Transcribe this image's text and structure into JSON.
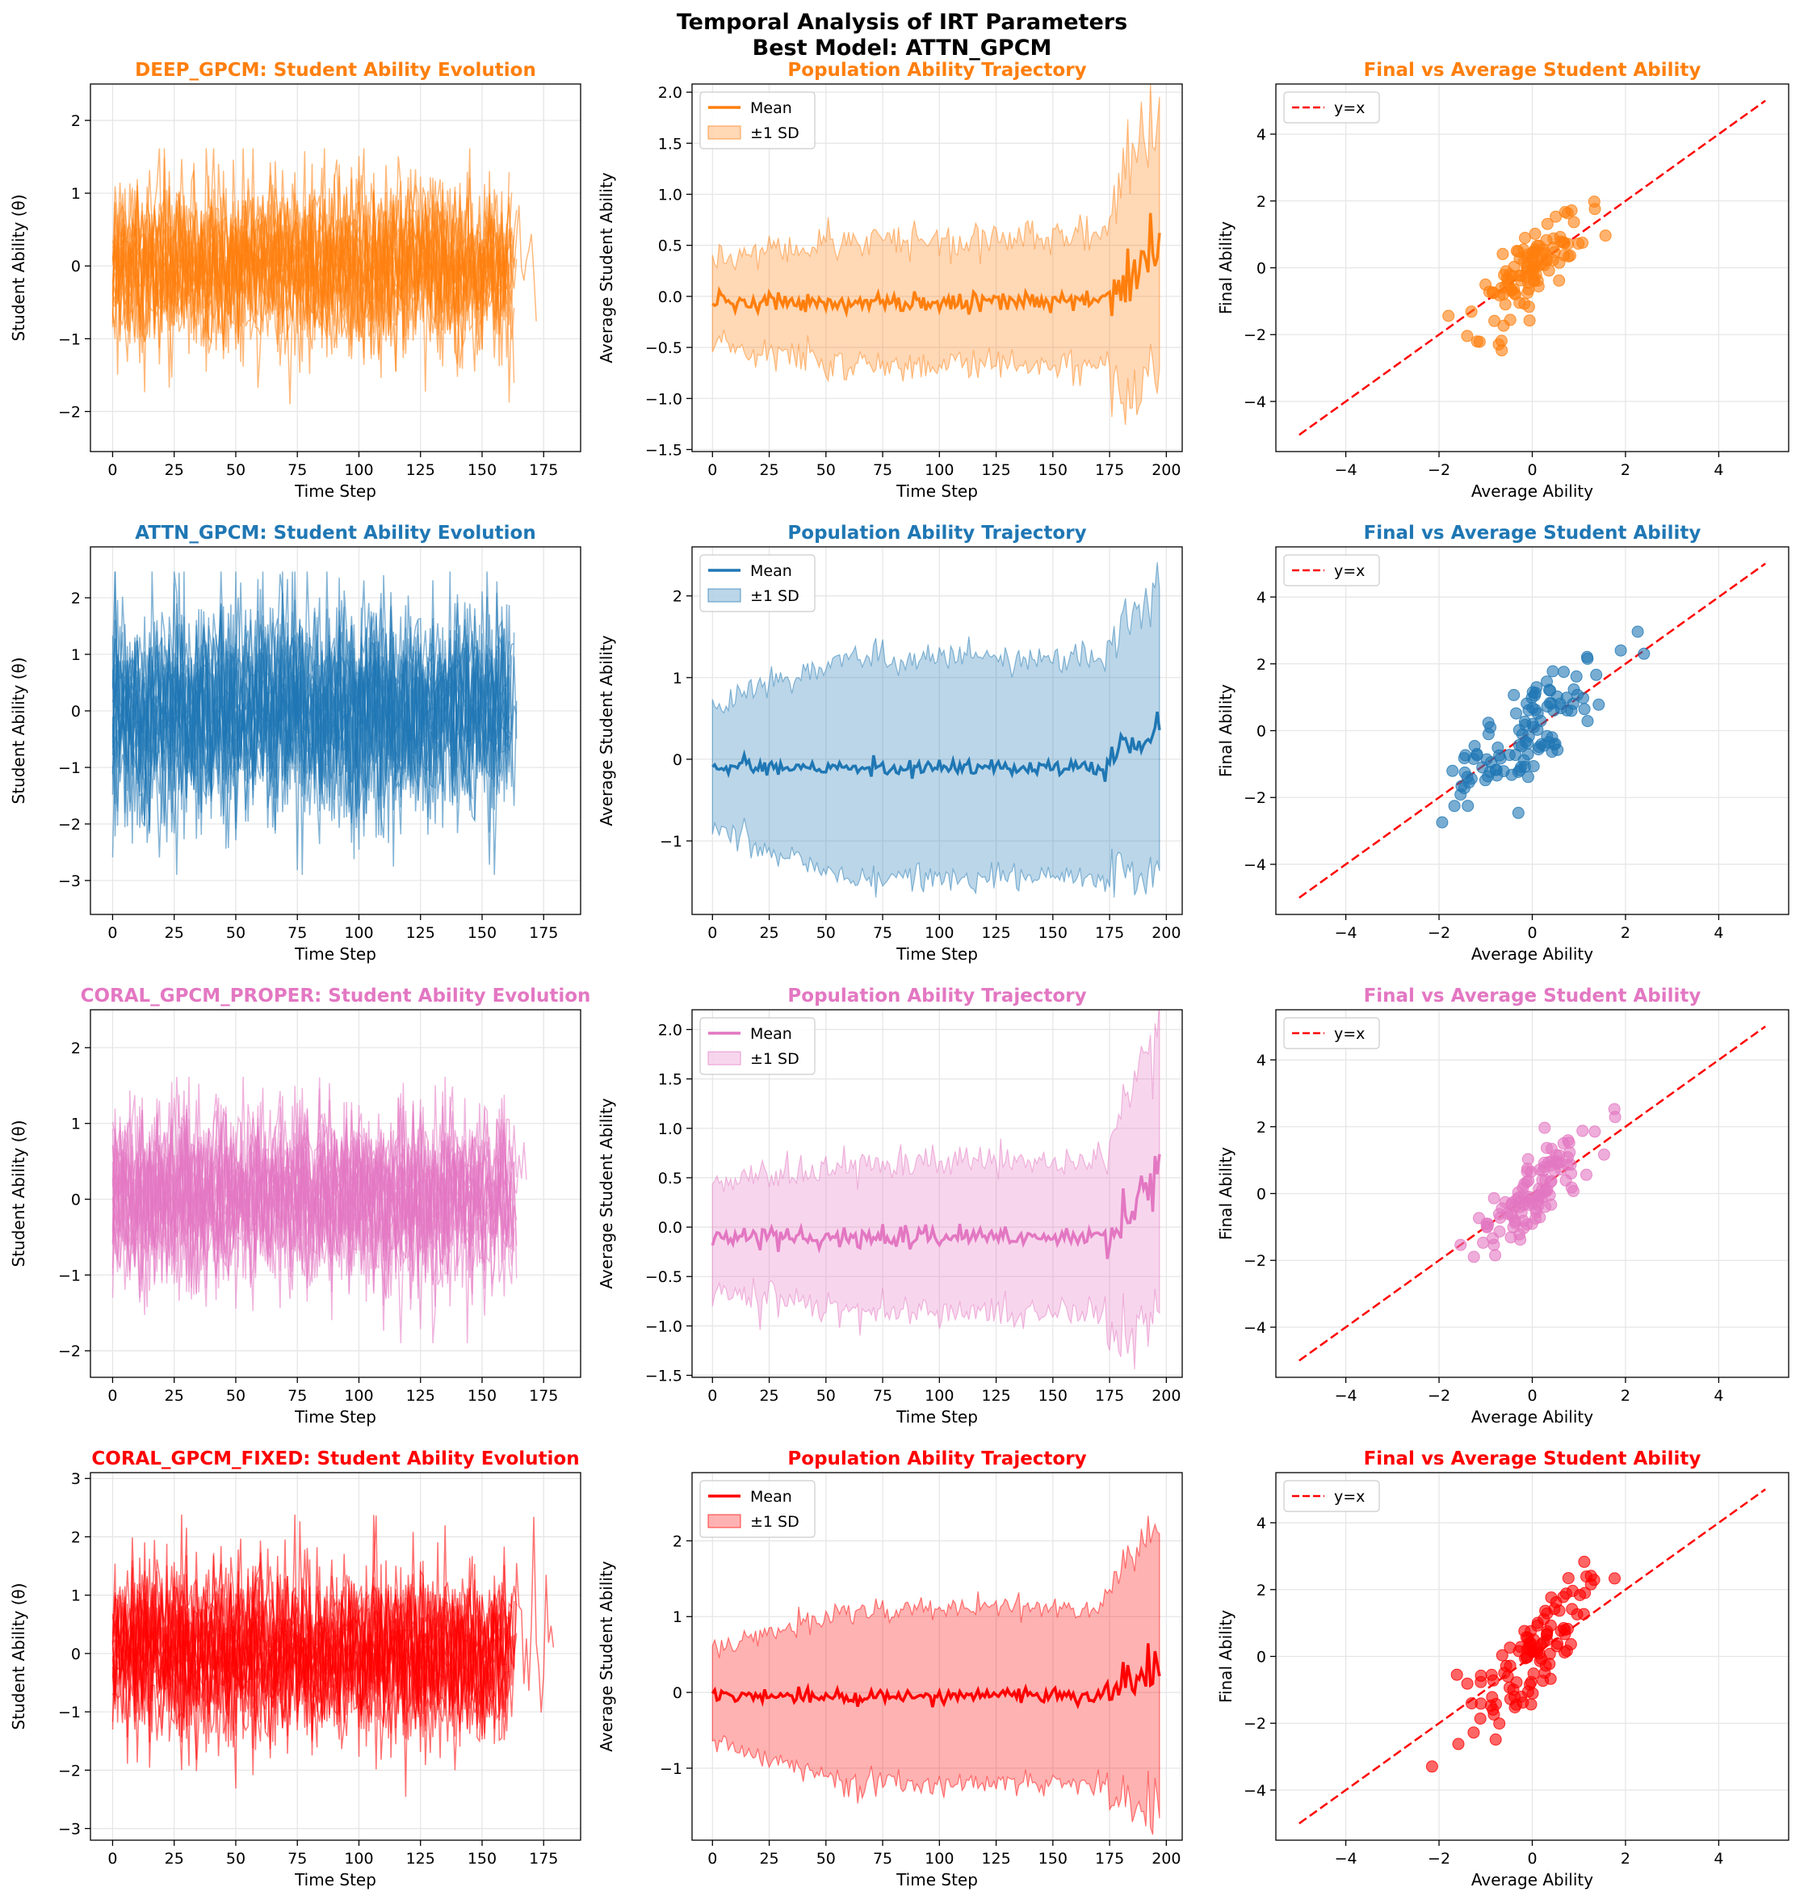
{
  "figure": {
    "title_line1": "Temporal Analysis of IRT Parameters",
    "title_line2": "Best Model: ATTN_GPCM"
  },
  "models": [
    {
      "name": "DEEP_GPCM",
      "color": "#ff7f0e"
    },
    {
      "name": "ATTN_GPCM",
      "color": "#1f77b4"
    },
    {
      "name": "CORAL_GPCM_PROPER",
      "color": "#e377c2"
    },
    {
      "name": "CORAL_GPCM_FIXED",
      "color": "#ff0000"
    }
  ],
  "chart_data": [
    {
      "type": "line",
      "panel": "evolution",
      "model": "DEEP_GPCM",
      "title": "DEEP_GPCM: Student Ability Evolution",
      "xlabel": "Time Step",
      "ylabel": "Student Ability (θ)",
      "xlim": [
        -9,
        190
      ],
      "ylim": [
        -2.55,
        2.5
      ],
      "xticks": [
        0,
        25,
        50,
        75,
        100,
        125,
        150,
        175
      ],
      "yticks": [
        -2,
        -1,
        0,
        1,
        2
      ],
      "grid": true,
      "series_count": 20,
      "series_max_len": 180,
      "seed": 11,
      "spread": 0.55,
      "extreme": 1.9
    },
    {
      "type": "area",
      "panel": "trajectory",
      "model": "DEEP_GPCM",
      "title": "Population Ability Trajectory",
      "xlabel": "Time Step",
      "ylabel": "Average Student Ability",
      "xlim": [
        -9,
        207
      ],
      "ylim": [
        -1.52,
        2.08
      ],
      "xticks": [
        0,
        25,
        50,
        75,
        100,
        125,
        150,
        175,
        200
      ],
      "yticks": [
        -1.5,
        -1.0,
        -0.5,
        0.0,
        0.5,
        1.0,
        1.5,
        2.0
      ],
      "legend": [
        "Mean",
        "±1 SD"
      ],
      "legend_position": "top-left",
      "grid": true,
      "x_end": 197,
      "base_mean": -0.05,
      "sd_start": 0.42,
      "sd_mid": 0.62,
      "sd_peak": 1.25,
      "seed": 21
    },
    {
      "type": "scatter",
      "panel": "final_vs_average",
      "model": "DEEP_GPCM",
      "title": "Final vs Average Student Ability",
      "xlabel": "Average Ability",
      "ylabel": "Final Ability",
      "xlim": [
        -5.5,
        5.5
      ],
      "ylim": [
        -5.5,
        5.5
      ],
      "xticks": [
        -4,
        -2,
        0,
        2,
        4
      ],
      "yticks": [
        -4,
        -2,
        0,
        2,
        4
      ],
      "legend": [
        "y=x"
      ],
      "legend_position": "top-left",
      "reference_line": [
        [
          -5,
          -5
        ],
        [
          5,
          5
        ]
      ],
      "grid": true,
      "n_points": 110,
      "x_spread": 0.6,
      "slope": 1.25,
      "noise": 0.55,
      "seed": 31
    },
    {
      "type": "line",
      "panel": "evolution",
      "model": "ATTN_GPCM",
      "title": "ATTN_GPCM: Student Ability Evolution",
      "xlabel": "Time Step",
      "ylabel": "Student Ability (θ)",
      "xlim": [
        -9,
        190
      ],
      "ylim": [
        -3.6,
        2.9
      ],
      "xticks": [
        0,
        25,
        50,
        75,
        100,
        125,
        150,
        175
      ],
      "yticks": [
        -3,
        -2,
        -1,
        0,
        1,
        2
      ],
      "grid": true,
      "series_count": 20,
      "series_max_len": 180,
      "seed": 12,
      "spread": 0.9,
      "extreme": 2.9
    },
    {
      "type": "area",
      "panel": "trajectory",
      "model": "ATTN_GPCM",
      "title": "Population Ability Trajectory",
      "xlabel": "Time Step",
      "ylabel": "Average Student Ability",
      "xlim": [
        -9,
        207
      ],
      "ylim": [
        -1.9,
        2.6
      ],
      "xticks": [
        0,
        25,
        50,
        75,
        100,
        125,
        150,
        175,
        200
      ],
      "yticks": [
        -1,
        0,
        1,
        2
      ],
      "legend": [
        "Mean",
        "±1 SD"
      ],
      "legend_position": "top-left",
      "grid": true,
      "x_end": 197,
      "base_mean": -0.1,
      "sd_start": 0.75,
      "sd_mid": 1.35,
      "sd_peak": 1.65,
      "seed": 22
    },
    {
      "type": "scatter",
      "panel": "final_vs_average",
      "model": "ATTN_GPCM",
      "title": "Final vs Average Student Ability",
      "xlabel": "Average Ability",
      "ylabel": "Final Ability",
      "xlim": [
        -5.5,
        5.5
      ],
      "ylim": [
        -5.5,
        5.5
      ],
      "xticks": [
        -4,
        -2,
        0,
        2,
        4
      ],
      "yticks": [
        -4,
        -2,
        0,
        2,
        4
      ],
      "legend": [
        "y=x"
      ],
      "legend_position": "top-left",
      "reference_line": [
        [
          -5,
          -5
        ],
        [
          5,
          5
        ]
      ],
      "grid": true,
      "n_points": 110,
      "x_spread": 1.0,
      "slope": 1.0,
      "noise": 0.7,
      "seed": 32
    },
    {
      "type": "line",
      "panel": "evolution",
      "model": "CORAL_GPCM_PROPER",
      "title": "CORAL_GPCM_PROPER: Student Ability Evolution",
      "xlabel": "Time Step",
      "ylabel": "Student Ability (θ)",
      "xlim": [
        -9,
        190
      ],
      "ylim": [
        -2.35,
        2.5
      ],
      "xticks": [
        0,
        25,
        50,
        75,
        100,
        125,
        150,
        175
      ],
      "yticks": [
        -2,
        -1,
        0,
        1,
        2
      ],
      "grid": true,
      "series_count": 20,
      "series_max_len": 180,
      "seed": 13,
      "spread": 0.55,
      "extreme": 1.9
    },
    {
      "type": "area",
      "panel": "trajectory",
      "model": "CORAL_GPCM_PROPER",
      "title": "Population Ability Trajectory",
      "xlabel": "Time Step",
      "ylabel": "Average Student Ability",
      "xlim": [
        -9,
        207
      ],
      "ylim": [
        -1.52,
        2.2
      ],
      "xticks": [
        0,
        25,
        50,
        75,
        100,
        125,
        150,
        175,
        200
      ],
      "yticks": [
        -1.5,
        -1.0,
        -0.5,
        0.0,
        0.5,
        1.0,
        1.5,
        2.0
      ],
      "legend": [
        "Mean",
        "±1 SD"
      ],
      "legend_position": "top-left",
      "grid": true,
      "x_end": 197,
      "base_mean": -0.1,
      "sd_start": 0.55,
      "sd_mid": 0.75,
      "sd_peak": 1.35,
      "seed": 23
    },
    {
      "type": "scatter",
      "panel": "final_vs_average",
      "model": "CORAL_GPCM_PROPER",
      "title": "Final vs Average Student Ability",
      "xlabel": "Average Ability",
      "ylabel": "Final Ability",
      "xlim": [
        -5.5,
        5.5
      ],
      "ylim": [
        -5.5,
        5.5
      ],
      "xticks": [
        -4,
        -2,
        0,
        2,
        4
      ],
      "yticks": [
        -4,
        -2,
        0,
        2,
        4
      ],
      "legend": [
        "y=x"
      ],
      "legend_position": "top-left",
      "reference_line": [
        [
          -5,
          -5
        ],
        [
          5,
          5
        ]
      ],
      "grid": true,
      "n_points": 110,
      "x_spread": 0.6,
      "slope": 1.3,
      "noise": 0.55,
      "seed": 33
    },
    {
      "type": "line",
      "panel": "evolution",
      "model": "CORAL_GPCM_FIXED",
      "title": "CORAL_GPCM_FIXED: Student Ability Evolution",
      "xlabel": "Time Step",
      "ylabel": "Student Ability (θ)",
      "xlim": [
        -9,
        190
      ],
      "ylim": [
        -3.2,
        3.1
      ],
      "xticks": [
        0,
        25,
        50,
        75,
        100,
        125,
        150,
        175
      ],
      "yticks": [
        -3,
        -2,
        -1,
        0,
        1,
        2,
        3
      ],
      "grid": true,
      "series_count": 20,
      "series_max_len": 180,
      "seed": 14,
      "spread": 0.7,
      "extreme": 2.8
    },
    {
      "type": "area",
      "panel": "trajectory",
      "model": "CORAL_GPCM_FIXED",
      "title": "Population Ability Trajectory",
      "xlabel": "Time Step",
      "ylabel": "Average Student Ability",
      "xlim": [
        -9,
        207
      ],
      "ylim": [
        -1.95,
        2.9
      ],
      "xticks": [
        0,
        25,
        50,
        75,
        100,
        125,
        150,
        175,
        200
      ],
      "yticks": [
        -1,
        0,
        1,
        2
      ],
      "legend": [
        "Mean",
        "±1 SD"
      ],
      "legend_position": "top-left",
      "grid": true,
      "x_end": 197,
      "base_mean": -0.05,
      "sd_start": 0.6,
      "sd_mid": 1.15,
      "sd_peak": 1.8,
      "seed": 24
    },
    {
      "type": "scatter",
      "panel": "final_vs_average",
      "model": "CORAL_GPCM_FIXED",
      "title": "Final vs Average Student Ability",
      "xlabel": "Average Ability",
      "ylabel": "Final Ability",
      "xlim": [
        -5.5,
        5.5
      ],
      "ylim": [
        -5.5,
        5.5
      ],
      "xticks": [
        -4,
        -2,
        0,
        2,
        4
      ],
      "yticks": [
        -4,
        -2,
        0,
        2,
        4
      ],
      "legend": [
        "y=x"
      ],
      "legend_position": "top-left",
      "reference_line": [
        [
          -5,
          -5
        ],
        [
          5,
          5
        ]
      ],
      "grid": true,
      "n_points": 110,
      "x_spread": 0.7,
      "slope": 1.4,
      "noise": 0.75,
      "seed": 34
    }
  ]
}
